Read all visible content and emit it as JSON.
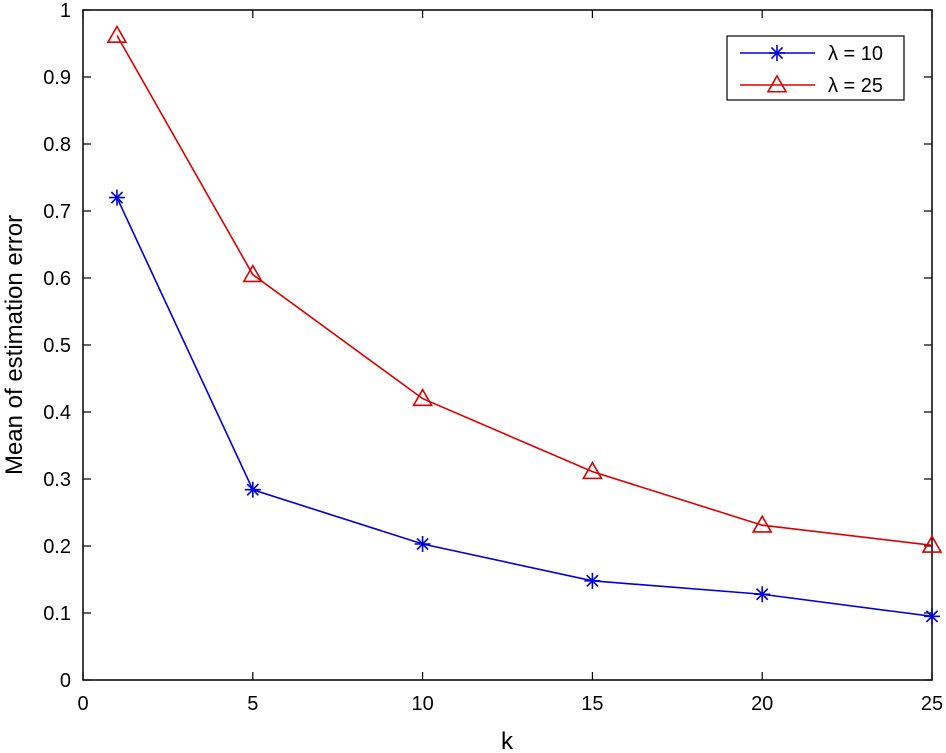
{
  "chart_data": {
    "type": "line",
    "xlabel": "k",
    "ylabel": "Mean of estimation error",
    "xlim": [
      0,
      25
    ],
    "ylim": [
      0,
      1
    ],
    "xticks": [
      0,
      5,
      10,
      15,
      20,
      25
    ],
    "xtick_labels": [
      "0",
      "5",
      "10",
      "15",
      "20",
      "25"
    ],
    "yticks": [
      0,
      0.1,
      0.2,
      0.3,
      0.4,
      0.5,
      0.6,
      0.7,
      0.8,
      0.9,
      1
    ],
    "ytick_labels": [
      "0",
      "0.1",
      "0.2",
      "0.3",
      "0.4",
      "0.5",
      "0.6",
      "0.7",
      "0.8",
      "0.9",
      "1"
    ],
    "grid": false,
    "legend_position": "top-right",
    "x": [
      1,
      5,
      10,
      15,
      20,
      25
    ],
    "series": [
      {
        "name": "λ = 10",
        "values": [
          0.72,
          0.284,
          0.203,
          0.148,
          0.128,
          0.095
        ],
        "color": "#0000dd",
        "marker": "asterisk"
      },
      {
        "name": "λ = 25",
        "values": [
          0.962,
          0.605,
          0.42,
          0.311,
          0.231,
          0.201
        ],
        "color": "#dd0000",
        "marker": "triangle"
      }
    ]
  }
}
